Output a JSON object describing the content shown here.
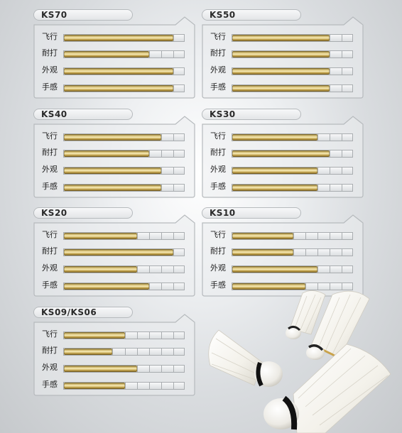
{
  "metric_labels": [
    "飞行",
    "耐打",
    "外观",
    "手感"
  ],
  "max_score": 10,
  "models": [
    {
      "name": "KS70",
      "ratings": [
        9,
        7,
        9,
        9
      ]
    },
    {
      "name": "KS50",
      "ratings": [
        8,
        8,
        8,
        8
      ]
    },
    {
      "name": "KS40",
      "ratings": [
        8,
        7,
        8,
        8
      ]
    },
    {
      "name": "KS30",
      "ratings": [
        7,
        8,
        7,
        7
      ]
    },
    {
      "name": "KS20",
      "ratings": [
        6,
        9,
        6,
        7
      ]
    },
    {
      "name": "KS10",
      "ratings": [
        5,
        5,
        7,
        6
      ]
    },
    {
      "name": "KS09/KS06",
      "ratings": [
        5,
        4,
        6,
        5
      ]
    }
  ],
  "colors": {
    "panel_border": "#b6babd",
    "gold_bar": "#d9c16f",
    "track_cell": "#e8eaec"
  }
}
